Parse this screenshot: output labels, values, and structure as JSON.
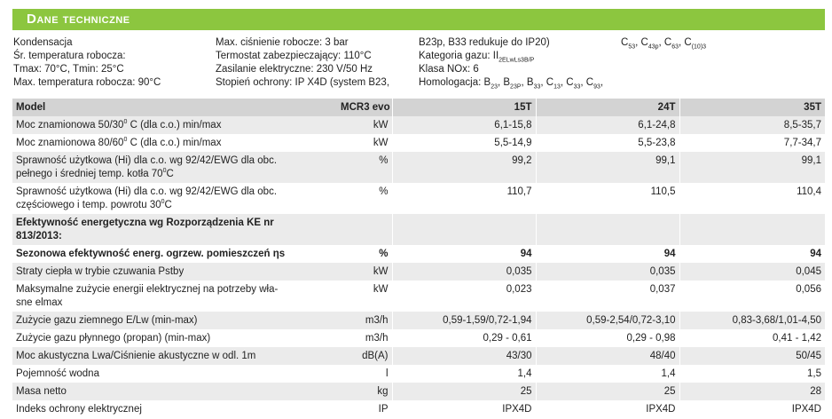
{
  "header": {
    "title": "Dane techniczne"
  },
  "specs": {
    "columns": [
      [
        [
          "Kondensacja"
        ],
        [
          "Śr. temperatura robocza:"
        ],
        [
          "Tmax: 70°C, Tmin: 25°C"
        ],
        [
          "Max. temperatura robocza: 90°C"
        ]
      ],
      [
        [
          "Max. ciśnienie robocze: 3 bar"
        ],
        [
          "Termostat zabezpieczający: 110°C"
        ],
        [
          "Zasilanie elektryczne: 230 V/50 Hz"
        ],
        [
          "Stopień ochrony: IP X4D (system B23,"
        ]
      ],
      [
        [
          "B23p, B33 redukuje do IP20)"
        ],
        [
          "Kategoria gazu: II",
          "2ELwLs3B/P"
        ],
        [
          "Klasa NOx: 6"
        ],
        [
          "Homologacja: B",
          "23",
          ", B",
          "23P",
          ", B",
          "33",
          ", C",
          "13",
          ", C",
          "33",
          ", C",
          "93",
          ","
        ]
      ],
      [
        [
          "C",
          "53",
          ", C",
          "43p",
          ", C",
          "63",
          ", C",
          "(10)3"
        ]
      ]
    ]
  },
  "table": {
    "header": [
      "Model",
      "MCR3 evo",
      "15T",
      "24T",
      "35T"
    ],
    "rows": [
      {
        "label": [
          [
            "Moc znamionowa 50/30",
            "0",
            " C (dla c.o.) min/max"
          ]
        ],
        "unit": "kW",
        "values": [
          "6,1-15,8",
          "6,1-24,8",
          "8,5-35,7"
        ],
        "bold": false
      },
      {
        "label": [
          [
            "Moc znamionowa 80/60",
            "0",
            " C (dla c.o.) min/max"
          ]
        ],
        "unit": "kW",
        "values": [
          "5,5-14,9",
          "5,5-23,8",
          "7,7-34,7"
        ],
        "bold": false
      },
      {
        "label": [
          [
            "Sprawność użytkowa (Hi) dla c.o. wg 92/42/EWG dla obc."
          ],
          [
            "pełnego i średniej temp. kotła 70",
            "0",
            "C"
          ]
        ],
        "unit": "%",
        "values": [
          "99,2",
          "99,1",
          "99,1"
        ],
        "bold": false
      },
      {
        "label": [
          [
            "Sprawność użytkowa (Hi) dla c.o. wg 92/42/EWG dla obc."
          ],
          [
            "częściowego i temp. powrotu 30",
            "0",
            "C"
          ]
        ],
        "unit": "%",
        "values": [
          "110,7",
          "110,5",
          "110,4"
        ],
        "bold": false
      },
      {
        "label": [
          [
            "Efektywność energetyczna wg Rozporządzenia KE nr"
          ],
          [
            "813/2013:"
          ]
        ],
        "bold": true
      },
      {
        "label": [
          [
            "Sezonowa efektywność energ. ogrzew. pomieszczeń ηs"
          ]
        ],
        "unit": "%",
        "values": [
          "94",
          "94",
          "94"
        ],
        "bold": true
      },
      {
        "label": [
          [
            "Straty ciepła w trybie czuwania Pstby"
          ]
        ],
        "unit": "kW",
        "values": [
          "0,035",
          "0,035",
          "0,045"
        ],
        "bold": false
      },
      {
        "label": [
          [
            "Maksymalne zużycie energii elektrycznej na potrzeby wła-"
          ],
          [
            "sne elmax"
          ]
        ],
        "unit": "kW",
        "values": [
          "0,023",
          "0,037",
          "0,056"
        ],
        "bold": false
      },
      {
        "label": [
          [
            "Zużycie gazu ziemnego E/Lw (min-max)"
          ]
        ],
        "unit": "m3/h",
        "values": [
          "0,59-1,59/0,72-1,94",
          "0,59-2,54/0,72-3,10",
          "0,83-3,68/1,01-4,50"
        ],
        "bold": false
      },
      {
        "label": [
          [
            "Zużycie gazu płynnego (propan) (min-max)"
          ]
        ],
        "unit": "m3/h",
        "values": [
          "0,29 - 0,61",
          "0,29 - 0,98",
          "0,41 - 1,42"
        ],
        "bold": false
      },
      {
        "label": [
          [
            "Moc akustyczna Lwa/Ciśnienie akustyczne w odl. 1m"
          ]
        ],
        "unit": "dB(A)",
        "values": [
          "43/30",
          "48/40",
          "50/45"
        ],
        "bold": false
      },
      {
        "label": [
          [
            "Pojemność wodna"
          ]
        ],
        "unit": "l",
        "values": [
          "1,4",
          "1,4",
          "1,5"
        ],
        "bold": false
      },
      {
        "label": [
          [
            "Masa netto"
          ]
        ],
        "unit": "kg",
        "values": [
          "25",
          "25",
          "28"
        ],
        "bold": false
      },
      {
        "label": [
          [
            "Indeks ochrony elektrycznej"
          ]
        ],
        "unit": "IP",
        "values": [
          "IPX4D",
          "IPX4D",
          "IPX4D"
        ],
        "bold": false
      }
    ]
  }
}
